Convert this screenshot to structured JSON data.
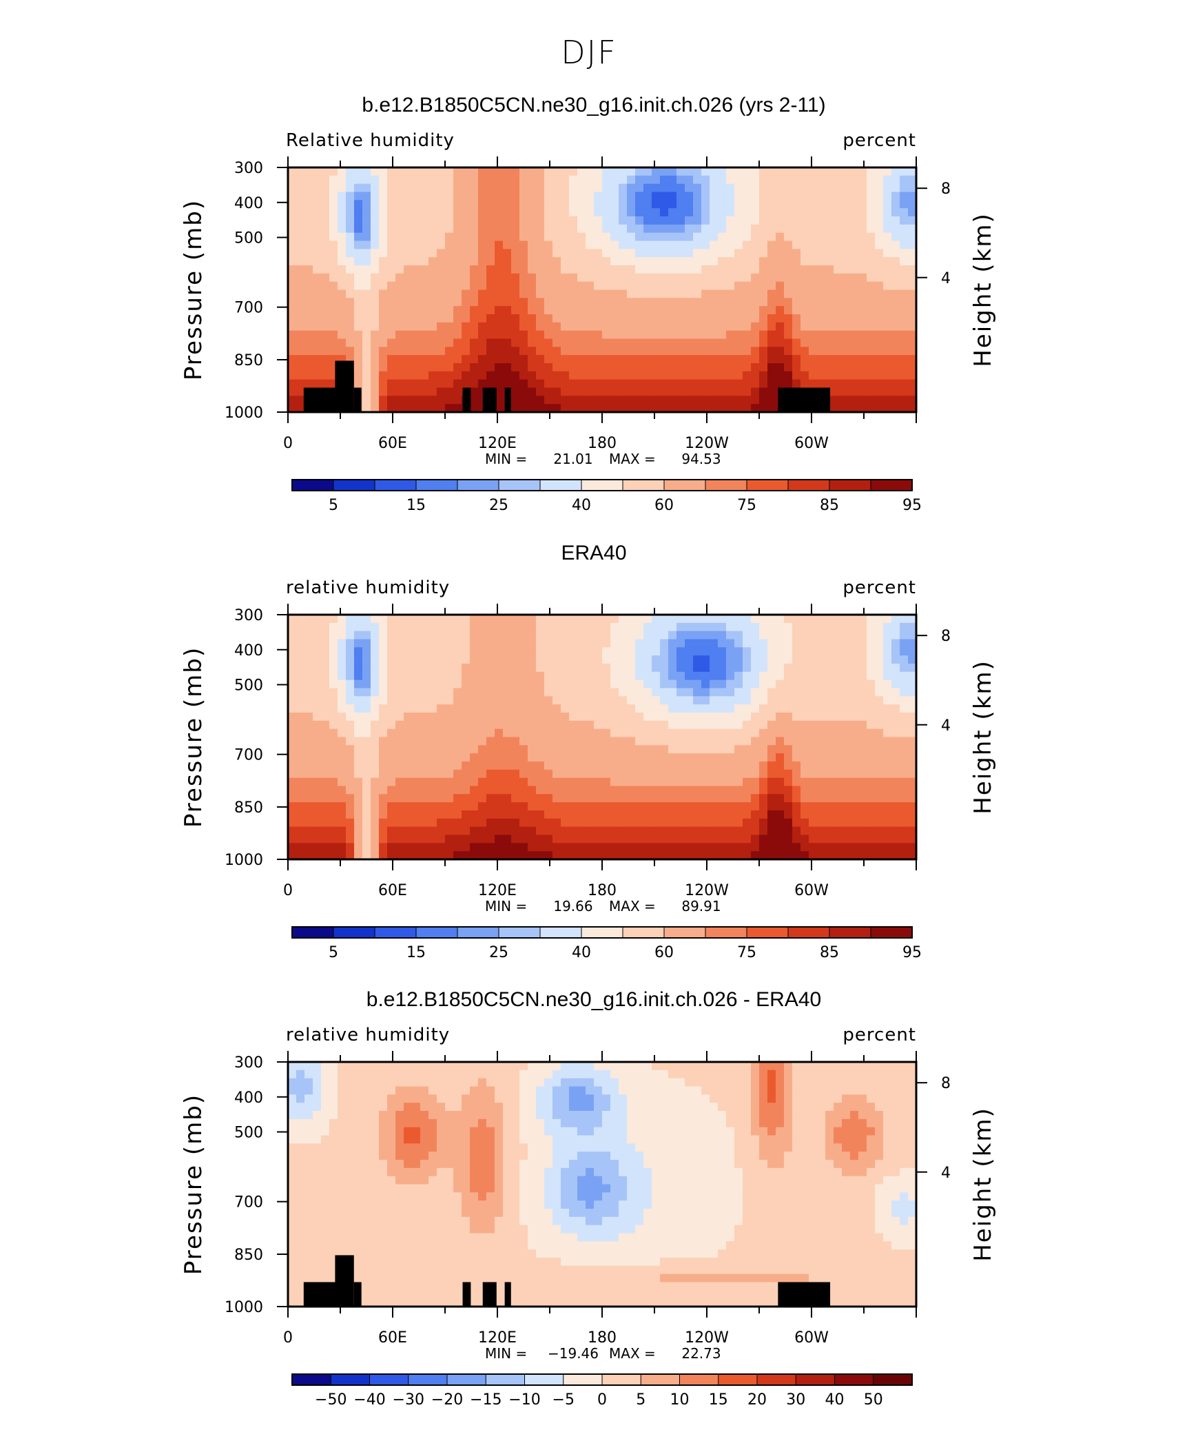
{
  "figure": {
    "title": "DJF",
    "xticks": [
      "0",
      "60E",
      "120E",
      "180",
      "120W",
      "60W"
    ],
    "pressure_ticks": [
      "300",
      "400",
      "500",
      "700",
      "850",
      "1000"
    ],
    "height_ticks": [
      "8",
      "4"
    ],
    "ylabel_left": "Pressure (mb)",
    "ylabel_right": "Height (km)",
    "min_label": "MIN =",
    "max_label": "MAX ="
  },
  "colors": {
    "abs_scale": [
      "#0a0a8a",
      "#1234cc",
      "#2f5ae8",
      "#4f7ff0",
      "#7aa2f4",
      "#a7c4f8",
      "#d2e4fb",
      "#fbe9dc",
      "#fcd1b7",
      "#f8ad8a",
      "#f2845c",
      "#ea5a2e",
      "#d4381a",
      "#b3200f",
      "#8b0b0b"
    ],
    "diff_scale": [
      "#0a0a8a",
      "#1234cc",
      "#2f5ae8",
      "#4f7ff0",
      "#7aa2f4",
      "#a7c4f8",
      "#d2e4fb",
      "#fbe9dc",
      "#fcd1b7",
      "#f8ad8a",
      "#f2845c",
      "#ea5a2e",
      "#d4381a",
      "#b3200f",
      "#8b0b0b",
      "#6a0505"
    ]
  },
  "chart_data": [
    {
      "type": "heatmap",
      "title": "b.e12.B1850C5CN.ne30_g16.init.ch.026 (yrs 2-11)",
      "variable": "Relative humidity",
      "units": "percent",
      "min": "21.01",
      "max": "94.53",
      "xlabel": "",
      "ylabel": "Pressure (mb)",
      "ylim": [
        1000,
        300
      ],
      "levels": [
        "5",
        "15",
        "25",
        "40",
        "60",
        "75",
        "85",
        "95"
      ]
    },
    {
      "type": "heatmap",
      "title": "ERA40",
      "variable": "relative humidity",
      "units": "percent",
      "min": "19.66",
      "max": "89.91",
      "xlabel": "",
      "ylabel": "Pressure (mb)",
      "ylim": [
        1000,
        300
      ],
      "levels": [
        "5",
        "15",
        "25",
        "40",
        "60",
        "75",
        "85",
        "95"
      ]
    },
    {
      "type": "heatmap",
      "title": "b.e12.B1850C5CN.ne30_g16.init.ch.026 - ERA40",
      "variable": "relative humidity",
      "units": "percent",
      "min": "−19.46",
      "max": "22.73",
      "xlabel": "",
      "ylabel": "Pressure (mb)",
      "ylim": [
        1000,
        300
      ],
      "levels": [
        "−50",
        "−40",
        "−30",
        "−20",
        "−15",
        "−10",
        "−5",
        "0",
        "5",
        "10",
        "15",
        "20",
        "30",
        "40",
        "50"
      ]
    }
  ]
}
